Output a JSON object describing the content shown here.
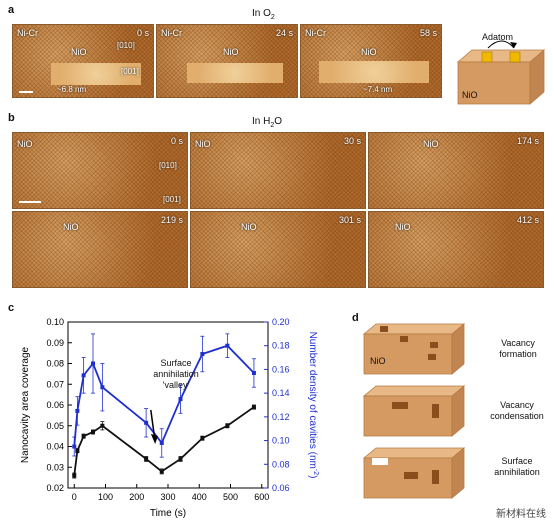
{
  "panel_a": {
    "letter": "a",
    "condition": "In O",
    "condition_sub": "2",
    "frames": [
      {
        "time": "0 s",
        "labels": [
          "Ni-Cr",
          "NiO"
        ],
        "dirs": [
          "[010]",
          "[001]"
        ],
        "measure": "~6.8 nm"
      },
      {
        "time": "24 s",
        "labels": [
          "Ni-Cr",
          "NiO"
        ]
      },
      {
        "time": "58 s",
        "labels": [
          "Ni-Cr",
          "NiO"
        ],
        "measure": "~7.4 nm"
      }
    ],
    "schematic": {
      "adatom": "Adatom",
      "material": "NiO"
    }
  },
  "panel_b": {
    "letter": "b",
    "condition": "In H",
    "condition_sub": "2",
    "condition_tail": "O",
    "frames": [
      {
        "time": "0 s",
        "label": "NiO",
        "dirs": [
          "[010]",
          "[001]"
        ]
      },
      {
        "time": "30 s",
        "label": "NiO"
      },
      {
        "time": "174 s",
        "label": "NiO"
      },
      {
        "time": "219 s",
        "label": "NiO"
      },
      {
        "time": "301 s",
        "label": "NiO"
      },
      {
        "time": "412 s",
        "label": "NiO"
      }
    ]
  },
  "panel_c": {
    "letter": "c",
    "annotation": [
      "Surface",
      "annihilation",
      "'valley'"
    ],
    "chart_data": {
      "type": "line",
      "xlabel": "Time (s)",
      "ylabel": "Nanocavity area coverage",
      "y2label": "Number density of cavities (nm",
      "y2label_sup": "-2",
      "y2label_tail": ")",
      "xlim": [
        -20,
        620
      ],
      "ylim": [
        0.02,
        0.1
      ],
      "y2lim": [
        0.06,
        0.2
      ],
      "xticks": [
        "0",
        "100",
        "200",
        "300",
        "400",
        "500",
        "600"
      ],
      "yticks": [
        "0.02",
        "0.03",
        "0.04",
        "0.05",
        "0.06",
        "0.07",
        "0.08",
        "0.09",
        "0.10"
      ],
      "y2ticks": [
        "0.06",
        "0.08",
        "0.10",
        "0.12",
        "0.14",
        "0.16",
        "0.18",
        "0.20"
      ],
      "series": [
        {
          "axis": "left",
          "color": "#111111",
          "x": [
            0,
            10,
            30,
            60,
            90,
            230,
            280,
            340,
            410,
            490,
            575
          ],
          "y": [
            0.026,
            0.038,
            0.045,
            0.047,
            0.05,
            0.034,
            0.028,
            0.034,
            0.044,
            0.05,
            0.059
          ],
          "err": [
            0.0012,
            0.001,
            0.001,
            0.001,
            0.002,
            0.0012,
            0.0012,
            0.0012,
            0.001,
            0.001,
            0.001
          ]
        },
        {
          "axis": "right",
          "color": "#1f2fd0",
          "x": [
            0,
            10,
            30,
            60,
            90,
            230,
            280,
            340,
            410,
            490,
            575
          ],
          "y": [
            0.095,
            0.125,
            0.155,
            0.165,
            0.145,
            0.115,
            0.098,
            0.135,
            0.173,
            0.18,
            0.157
          ],
          "err": [
            0.008,
            0.012,
            0.015,
            0.025,
            0.02,
            0.012,
            0.012,
            0.012,
            0.015,
            0.01,
            0.012
          ]
        }
      ]
    }
  },
  "panel_d": {
    "letter": "d",
    "rows": [
      {
        "material": "NiO",
        "caption": [
          "Vacancy",
          "formation"
        ]
      },
      {
        "caption": [
          "Vacancy",
          "condensation"
        ]
      },
      {
        "caption": [
          "Surface",
          "annihilation"
        ]
      }
    ]
  },
  "watermark": "新材料在线",
  "colors": {
    "tem": "#c07a36",
    "black_series": "#111111",
    "blue_series": "#1f2fd0",
    "box": "#d49a62"
  }
}
